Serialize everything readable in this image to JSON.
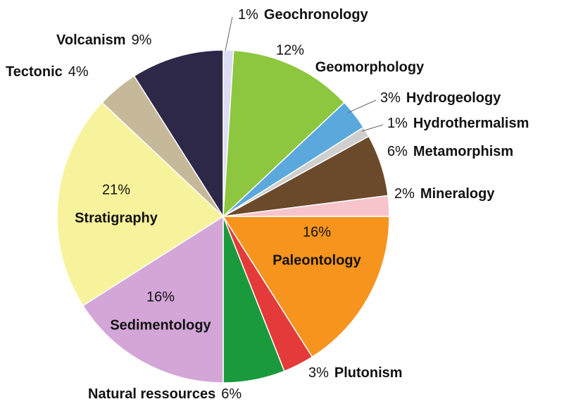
{
  "chart_data": {
    "type": "pie",
    "categories": [
      "Geochronology",
      "Geomorphology",
      "Hydrogeology",
      "Hydrothermalism",
      "Metamorphism",
      "Mineralogy",
      "Paleontology",
      "Plutonism",
      "Natural ressources",
      "Sedimentology",
      "Stratigraphy",
      "Tectonic",
      "Volcanism"
    ],
    "values": [
      1,
      12,
      3,
      1,
      6,
      2,
      16,
      3,
      6,
      16,
      21,
      4,
      9
    ],
    "value_labels": [
      "1%",
      "12%",
      "3%",
      "1%",
      "6%",
      "2%",
      "16%",
      "3%",
      "6%",
      "16%",
      "21%",
      "4%",
      "9%"
    ],
    "colors": [
      "#dcdcf2",
      "#8dc63f",
      "#5aa8dc",
      "#cfcfcf",
      "#6b4a2b",
      "#f7c4ca",
      "#f7941d",
      "#e53a3a",
      "#1a9a3c",
      "#d4a6d8",
      "#f7f39c",
      "#c6b99a",
      "#2d2748"
    ]
  }
}
